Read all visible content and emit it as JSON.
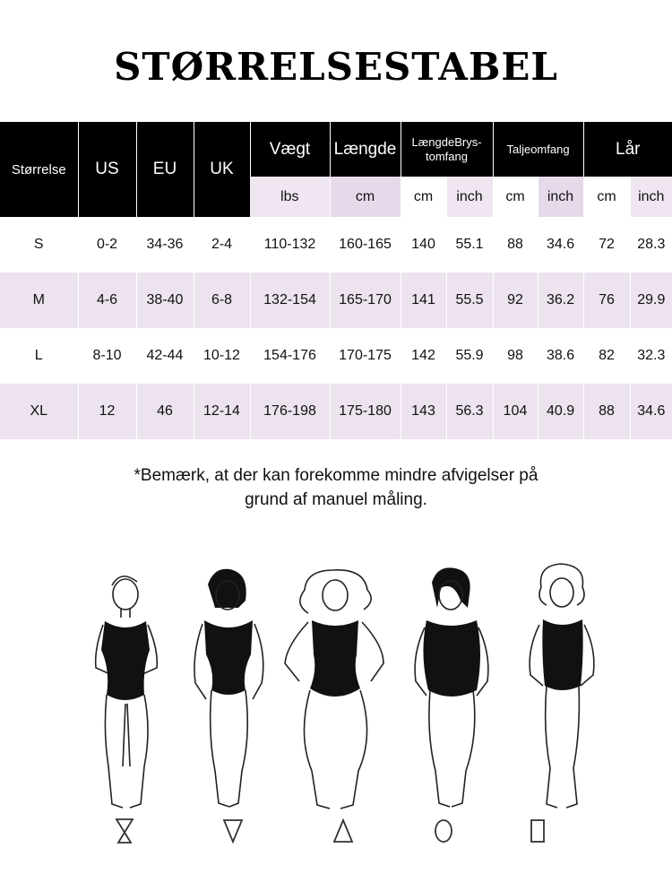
{
  "title": "STØRRELSESTABEL",
  "table": {
    "size_header": "Størrelse",
    "columns": {
      "us": "US",
      "eu": "EU",
      "uk": "UK",
      "weight": "Vægt",
      "length": "Længde",
      "bust": "LængdeBrys-tomfang",
      "waist": "Taljeomfang",
      "thigh": "Lår"
    },
    "units": {
      "weight": "lbs",
      "length": "cm",
      "bust_cm": "cm",
      "bust_inch": "inch",
      "waist_cm": "cm",
      "waist_inch": "inch",
      "thigh_cm": "cm",
      "thigh_inch": "inch"
    },
    "rows": [
      {
        "size": "S",
        "us": "0-2",
        "eu": "34-36",
        "uk": "2-4",
        "weight": "110-132",
        "length": "160-165",
        "bust_cm": "140",
        "bust_inch": "55.1",
        "waist_cm": "88",
        "waist_inch": "34.6",
        "thigh_cm": "72",
        "thigh_inch": "28.3"
      },
      {
        "size": "M",
        "us": "4-6",
        "eu": "38-40",
        "uk": "6-8",
        "weight": "132-154",
        "length": "165-170",
        "bust_cm": "141",
        "bust_inch": "55.5",
        "waist_cm": "92",
        "waist_inch": "36.2",
        "thigh_cm": "76",
        "thigh_inch": "29.9"
      },
      {
        "size": "L",
        "us": "8-10",
        "eu": "42-44",
        "uk": "10-12",
        "weight": "154-176",
        "length": "170-175",
        "bust_cm": "142",
        "bust_inch": "55.9",
        "waist_cm": "98",
        "waist_inch": "38.6",
        "thigh_cm": "82",
        "thigh_inch": "32.3"
      },
      {
        "size": "XL",
        "us": "12",
        "eu": "46",
        "uk": "12-14",
        "weight": "176-198",
        "length": "175-180",
        "bust_cm": "143",
        "bust_inch": "56.3",
        "waist_cm": "104",
        "waist_inch": "40.9",
        "thigh_cm": "88",
        "thigh_inch": "34.6"
      }
    ]
  },
  "note": {
    "line1": "*Bemærk, at der kan forekomme mindre afvigelser på",
    "line2": "grund af manuel måling."
  },
  "body_shapes": [
    {
      "icon": "hourglass-icon",
      "glyph": "⏳"
    },
    {
      "icon": "inverted-triangle-icon",
      "glyph": "▽"
    },
    {
      "icon": "triangle-icon",
      "glyph": "△"
    },
    {
      "icon": "oval-icon",
      "glyph": "◯"
    },
    {
      "icon": "rectangle-icon",
      "glyph": "▯"
    }
  ],
  "colors": {
    "header_bg": "#000000",
    "lavender_row": "#ece3ee",
    "lavender_unit": "#e6d9ea"
  }
}
